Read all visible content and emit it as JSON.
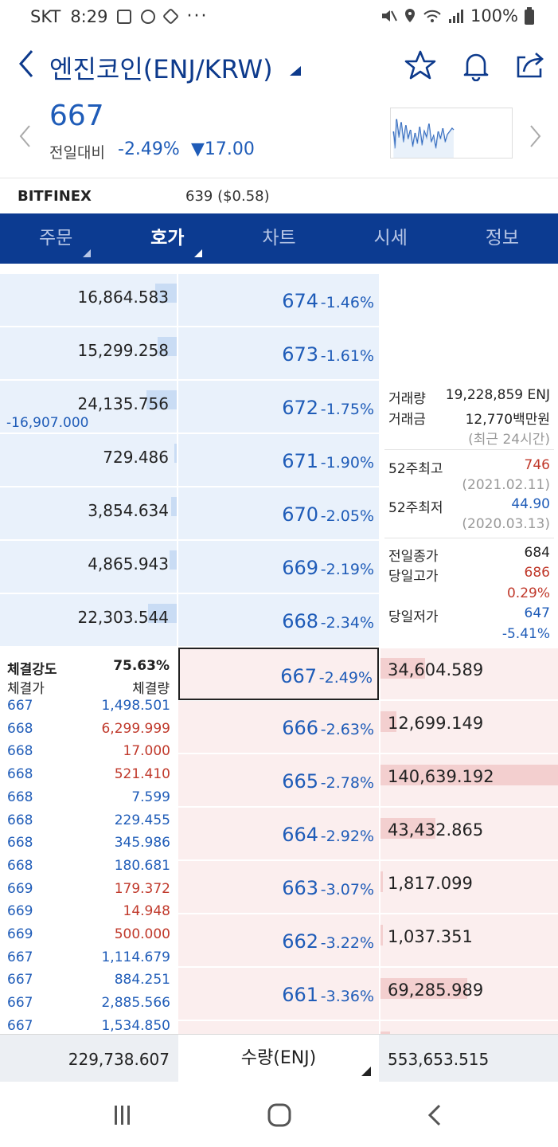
{
  "status_bar": {
    "carrier": "SKT",
    "time": "8:29",
    "dots": "···",
    "battery": "100%"
  },
  "header": {
    "title": "엔진코인(ENJ/KRW)"
  },
  "price": {
    "current": "667",
    "change_label": "전일대비",
    "change_pct": "-2.49%",
    "change_amt": "▼17.00"
  },
  "exchange": {
    "name": "BITFINEX",
    "value": "639 ($0.58)"
  },
  "tabs": [
    {
      "label": "주문",
      "active": false
    },
    {
      "label": "호가",
      "active": true
    },
    {
      "label": "차트",
      "active": false
    },
    {
      "label": "시세",
      "active": false
    },
    {
      "label": "정보",
      "active": false
    }
  ],
  "asks": [
    {
      "volume": "16,864.583",
      "price": "674",
      "pct": "-1.46%",
      "bar": 0.12,
      "sub": ""
    },
    {
      "volume": "15,299.258",
      "price": "673",
      "pct": "-1.61%",
      "bar": 0.11,
      "sub": ""
    },
    {
      "volume": "24,135.756",
      "price": "672",
      "pct": "-1.75%",
      "bar": 0.17,
      "sub": "-16,907.000"
    },
    {
      "volume": "729.486",
      "price": "671",
      "pct": "-1.90%",
      "bar": 0.01,
      "sub": ""
    },
    {
      "volume": "3,854.634",
      "price": "670",
      "pct": "-2.05%",
      "bar": 0.03,
      "sub": ""
    },
    {
      "volume": "4,865.943",
      "price": "669",
      "pct": "-2.19%",
      "bar": 0.04,
      "sub": ""
    },
    {
      "volume": "22,303.544",
      "price": "668",
      "pct": "-2.34%",
      "bar": 0.16,
      "sub": ""
    }
  ],
  "bids": [
    {
      "volume": "34,604.589",
      "price": "667",
      "pct": "-2.49%",
      "bar": 0.25
    },
    {
      "volume": "12,699.149",
      "price": "666",
      "pct": "-2.63%",
      "bar": 0.09
    },
    {
      "volume": "140,639.192",
      "price": "665",
      "pct": "-2.78%",
      "bar": 1.0
    },
    {
      "volume": "43,432.865",
      "price": "664",
      "pct": "-2.92%",
      "bar": 0.31
    },
    {
      "volume": "1,817.099",
      "price": "663",
      "pct": "-3.07%",
      "bar": 0.01
    },
    {
      "volume": "1,037.351",
      "price": "662",
      "pct": "-3.22%",
      "bar": 0.01
    },
    {
      "volume": "69,285.989",
      "price": "661",
      "pct": "-3.36%",
      "bar": 0.49
    }
  ],
  "info": {
    "vol_label": "거래량",
    "vol_value": "19,228,859 ENJ",
    "amt_label": "거래금",
    "amt_value": "12,770백만원",
    "period_note": "(최근 24시간)",
    "high52_label": "52주최고",
    "high52_value": "746",
    "high52_date": "(2021.02.11)",
    "low52_label": "52주최저",
    "low52_value": "44.90",
    "low52_date": "(2020.03.13)",
    "prev_close_label": "전일종가",
    "prev_close_value": "684",
    "day_high_label": "당일고가",
    "day_high_value": "686",
    "day_high_pct": "0.29%",
    "day_low_label": "당일저가",
    "day_low_value": "647",
    "day_low_pct": "-5.41%"
  },
  "trades": {
    "strength_label": "체결강도",
    "strength_value": "75.63%",
    "price_header": "체결가",
    "volume_header": "체결량",
    "rows": [
      {
        "price": "667",
        "volume": "1,498.501",
        "color": "#1f5cb8"
      },
      {
        "price": "668",
        "volume": "6,299.999",
        "color": "#c0392b"
      },
      {
        "price": "668",
        "volume": "17.000",
        "color": "#c0392b"
      },
      {
        "price": "668",
        "volume": "521.410",
        "color": "#c0392b"
      },
      {
        "price": "668",
        "volume": "7.599",
        "color": "#1f5cb8"
      },
      {
        "price": "668",
        "volume": "229.455",
        "color": "#1f5cb8"
      },
      {
        "price": "668",
        "volume": "345.986",
        "color": "#1f5cb8"
      },
      {
        "price": "668",
        "volume": "180.681",
        "color": "#1f5cb8"
      },
      {
        "price": "669",
        "volume": "179.372",
        "color": "#c0392b"
      },
      {
        "price": "669",
        "volume": "14.948",
        "color": "#c0392b"
      },
      {
        "price": "669",
        "volume": "500.000",
        "color": "#c0392b"
      },
      {
        "price": "667",
        "volume": "1,114.679",
        "color": "#1f5cb8"
      },
      {
        "price": "667",
        "volume": "884.251",
        "color": "#1f5cb8"
      },
      {
        "price": "667",
        "volume": "2,885.566",
        "color": "#1f5cb8"
      },
      {
        "price": "667",
        "volume": "1,534.850",
        "color": "#1f5cb8"
      }
    ]
  },
  "footer": {
    "total_ask": "229,738.607",
    "unit": "수량(ENJ)",
    "total_bid": "553,653.515"
  },
  "colors": {
    "brand": "#0c3b91",
    "up": "#c0392b",
    "down": "#1f5cb8"
  }
}
